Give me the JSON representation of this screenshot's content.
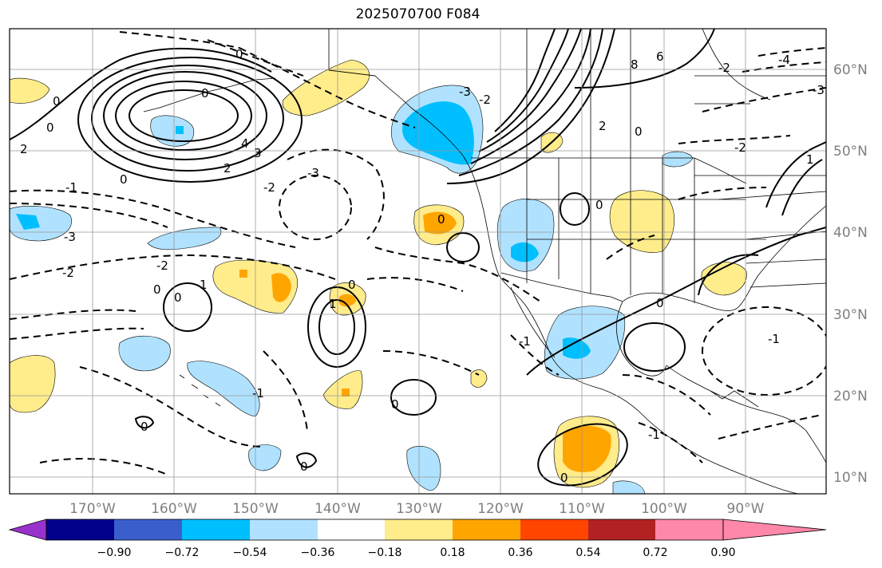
{
  "title": "2025070700 F084",
  "map": {
    "lat_labels": [
      "60°N",
      "50°N",
      "40°N",
      "30°N",
      "20°N",
      "10°N"
    ],
    "lon_labels": [
      "170°W",
      "160°W",
      "150°W",
      "140°W",
      "130°W",
      "120°W",
      "110°W",
      "100°W",
      "90°W"
    ],
    "contour_labels": [
      "0",
      "1",
      "2",
      "3",
      "4",
      "6",
      "8",
      "-1",
      "-2",
      "-3",
      "-4"
    ]
  },
  "colorbar": {
    "ticks": [
      "−0.90",
      "−0.72",
      "−0.54",
      "−0.36",
      "−0.18",
      "0.18",
      "0.36",
      "0.54",
      "0.72",
      "0.90"
    ],
    "colors": [
      "#9932cc",
      "#00008b",
      "#3a5fcd",
      "#00bfff",
      "#b0e2ff",
      "#ffffff",
      "#ffec8b",
      "#ffa500",
      "#ff4500",
      "#b22222",
      "#ff88aa"
    ]
  }
}
